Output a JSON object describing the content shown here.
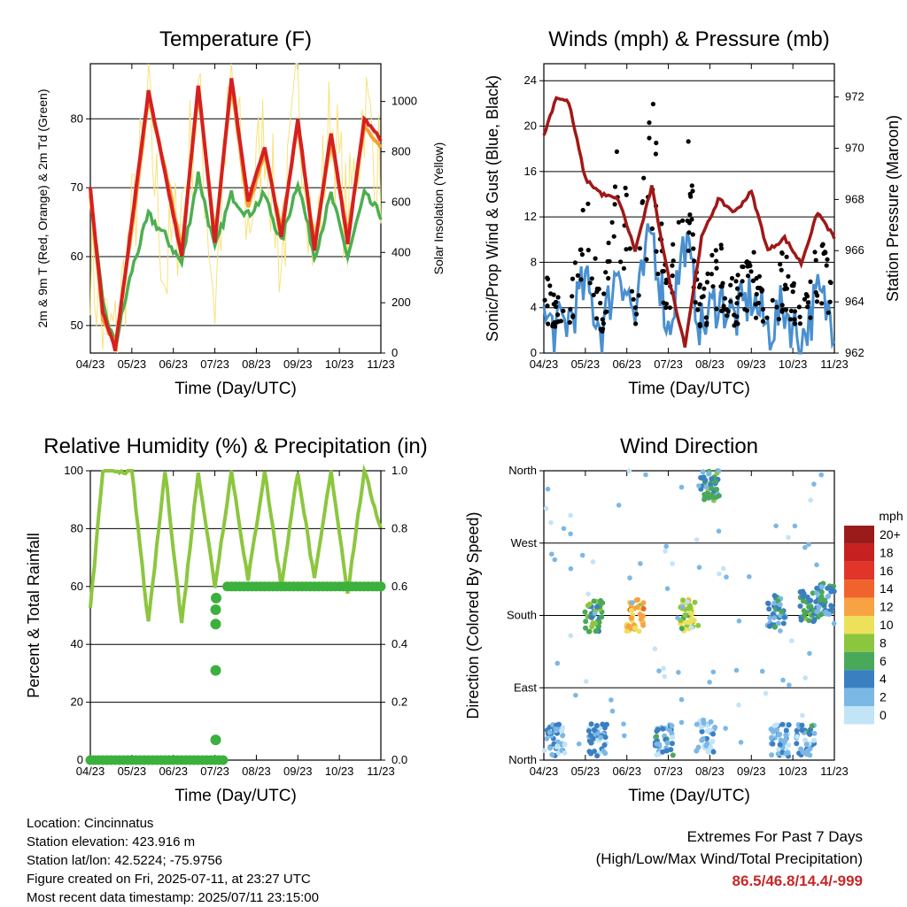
{
  "x_ticks": [
    "04/23",
    "05/23",
    "06/23",
    "07/23",
    "08/23",
    "09/23",
    "10/23",
    "11/23"
  ],
  "x_label": "Time (Day/UTC)",
  "info": {
    "location": "Location: Cincinnatus",
    "elevation": "Station elevation: 423.916 m",
    "latlon": "Station lat/lon: 42.5224; -75.9756",
    "created": "Figure created on Fri, 2025-07-11, at 23:27 UTC",
    "recent": "Most recent data timestamp: 2025/07/11 23:15:00"
  },
  "extremes": {
    "title": "Extremes For Past 7 Days",
    "subtitle": "(High/Low/Max Wind/Total Precipitation)",
    "values": "86.5/46.8/14.4/-999"
  },
  "colors": {
    "temp_red": "#d62020",
    "temp_orange": "#f5a030",
    "dew_green": "#4caf50",
    "solar_yellow": "#f7e27a",
    "sonic_blue": "#4a90d0",
    "gust_black": "#000000",
    "pressure_maroon": "#a01818",
    "rh_green": "#8cc63f",
    "precip_green": "#3cb03c"
  },
  "chart_data": [
    {
      "type": "line",
      "title": "Temperature (F)",
      "xlabel": "Time (Day/UTC)",
      "ylabel": "2m & 9m T (Red, Orange) & 2m Td (Green)",
      "y2label": "Solar Insolation (Yellow)",
      "ylim": [
        46,
        88
      ],
      "y2lim": [
        0,
        1150
      ],
      "yticks": [
        50,
        60,
        70,
        80
      ],
      "y2ticks": [
        0,
        200,
        400,
        600,
        800,
        1000
      ],
      "x": [
        0,
        0.3,
        0.6,
        1.0,
        1.4,
        1.8,
        2.2,
        2.6,
        3.0,
        3.4,
        3.8,
        4.2,
        4.6,
        5.0,
        5.4,
        5.8,
        6.2,
        6.6,
        7.0
      ],
      "series": [
        {
          "name": "2m T",
          "values": [
            70,
            52,
            46.5,
            65,
            84,
            72,
            60,
            85,
            62,
            86,
            68,
            76,
            63,
            80,
            61,
            78,
            62,
            80,
            77
          ]
        },
        {
          "name": "9m T",
          "values": [
            69,
            51,
            47,
            64,
            83,
            73,
            61,
            84,
            63,
            85,
            67,
            75,
            64,
            79,
            62,
            77,
            63,
            79,
            76
          ]
        },
        {
          "name": "2m Td",
          "values": [
            69,
            53,
            47,
            58,
            66,
            63,
            59,
            72,
            61,
            69,
            66,
            69,
            62,
            71,
            60,
            69,
            60,
            69,
            66
          ]
        },
        {
          "name": "Solar Insolation",
          "values": [
            400,
            100,
            50,
            500,
            950,
            300,
            600,
            1000,
            200,
            1100,
            500,
            900,
            350,
            1050,
            400,
            950,
            500,
            1000,
            700
          ]
        }
      ]
    },
    {
      "type": "line",
      "title": "Winds (mph) & Pressure (mb)",
      "xlabel": "Time (Day/UTC)",
      "ylabel": "Sonic/Prop Wind & Gust (Blue, Black)",
      "y2label": "Station Pressure (Maroon)",
      "ylim": [
        0,
        25.5
      ],
      "y2lim": [
        962,
        973.3
      ],
      "yticks": [
        0,
        4,
        8,
        12,
        16,
        20,
        24
      ],
      "y2ticks": [
        962,
        964,
        966,
        968,
        970,
        972
      ],
      "x": [
        0,
        0.3,
        0.6,
        1.0,
        1.4,
        1.8,
        2.2,
        2.6,
        3.0,
        3.4,
        3.8,
        4.2,
        4.6,
        5.0,
        5.4,
        5.8,
        6.2,
        6.6,
        7.0
      ],
      "series": [
        {
          "name": "Sonic/Prop Wind",
          "values": [
            3,
            2,
            3,
            6,
            2,
            8,
            3,
            11,
            2,
            10,
            2,
            5,
            3,
            5,
            2,
            4,
            1,
            5,
            3
          ]
        },
        {
          "name": "Gust",
          "values": [
            6,
            4,
            5,
            12,
            4,
            17,
            5,
            20,
            4,
            18,
            4,
            9,
            5,
            8,
            4,
            8,
            3,
            9,
            6
          ]
        },
        {
          "name": "Station Pressure",
          "values": [
            970.5,
            972,
            971.8,
            968.8,
            968.2,
            968,
            966,
            968.5,
            965,
            962.3,
            966.5,
            968,
            967.5,
            968.3,
            966,
            966.5,
            965.5,
            967.5,
            966.5
          ]
        }
      ]
    },
    {
      "type": "line",
      "title": "Relative Humidity (%) & Precipitation (in)",
      "xlabel": "Time (Day/UTC)",
      "ylabel": "Percent & Total Rainfall",
      "ylim": [
        0,
        100
      ],
      "y2lim": [
        0,
        1.0
      ],
      "yticks": [
        0,
        20,
        40,
        60,
        80,
        100
      ],
      "y2ticks": [
        "0.0",
        "0.2",
        "0.4",
        "0.6",
        "0.8",
        "1.0"
      ],
      "x": [
        0,
        0.3,
        0.6,
        1.0,
        1.4,
        1.8,
        2.2,
        2.6,
        3.0,
        3.4,
        3.8,
        4.2,
        4.6,
        5.0,
        5.4,
        5.8,
        6.2,
        6.6,
        7.0
      ],
      "series": [
        {
          "name": "Relative Humidity",
          "values": [
            52,
            100,
            100,
            100,
            47,
            100,
            47,
            100,
            60,
            100,
            62,
            100,
            60,
            100,
            62,
            100,
            58,
            100,
            80
          ]
        },
        {
          "name": "Total Precipitation",
          "values": [
            0,
            0,
            0,
            0,
            0,
            0,
            0,
            0,
            0,
            0.6,
            0.6,
            0.6,
            0.6,
            0.6,
            0.6,
            0.6,
            0.6,
            0.6,
            0.6
          ]
        }
      ]
    },
    {
      "type": "scatter",
      "title": "Wind Direction",
      "xlabel": "Time (Day/UTC)",
      "ylabel": "Direction (Colored By Speed)",
      "yticks": [
        "North",
        "East",
        "South",
        "West",
        "North"
      ],
      "colorbar_unit": "mph",
      "colorbar_labels": [
        "20+",
        "18",
        "16",
        "14",
        "12",
        "10",
        "8",
        "6",
        "4",
        "2",
        "0"
      ],
      "colorbar_colors": [
        "#9b1b1b",
        "#c62020",
        "#e2352a",
        "#f0632d",
        "#f7a344",
        "#ede05a",
        "#8cc63f",
        "#4aa85a",
        "#3a7fc0",
        "#7cb8e6",
        "#c2e4f7"
      ],
      "clusters": [
        {
          "x": 0.3,
          "dir": 25,
          "speed": 2
        },
        {
          "x": 1.3,
          "dir": 25,
          "speed": 2
        },
        {
          "x": 1.2,
          "dir": 180,
          "speed": 6
        },
        {
          "x": 2.2,
          "dir": 180,
          "speed": 11
        },
        {
          "x": 2.9,
          "dir": 25,
          "speed": 3
        },
        {
          "x": 3.5,
          "dir": 180,
          "speed": 9
        },
        {
          "x": 4.0,
          "dir": 340,
          "speed": 5
        },
        {
          "x": 3.9,
          "dir": 30,
          "speed": 1
        },
        {
          "x": 5.6,
          "dir": 185,
          "speed": 4
        },
        {
          "x": 5.7,
          "dir": 25,
          "speed": 2
        },
        {
          "x": 6.4,
          "dir": 190,
          "speed": 5
        },
        {
          "x": 6.3,
          "dir": 25,
          "speed": 3
        },
        {
          "x": 6.8,
          "dir": 200,
          "speed": 4
        }
      ]
    }
  ]
}
